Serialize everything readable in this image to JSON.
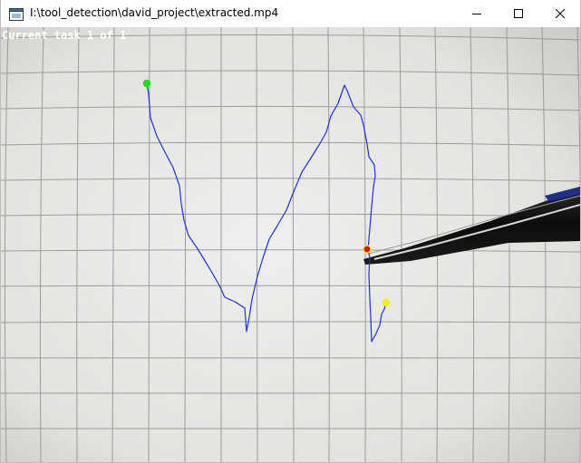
{
  "window": {
    "title": "I:\\tool_detection\\david_project\\extracted.mp4",
    "app_icon": "video-window-icon",
    "controls": {
      "minimize_icon": "minimize-icon",
      "maximize_icon": "maximize-icon",
      "close_icon": "close-icon"
    }
  },
  "video": {
    "overlay_text": "Current task 1 of 1",
    "colors": {
      "path": "#1f2fe0",
      "start_marker": "#19e019",
      "end_marker": "#f2ef10",
      "tool_tip_marker": "#e01010",
      "tool_tip_ring": "#f2ef10",
      "overlay_text": "#ffffff"
    }
  }
}
